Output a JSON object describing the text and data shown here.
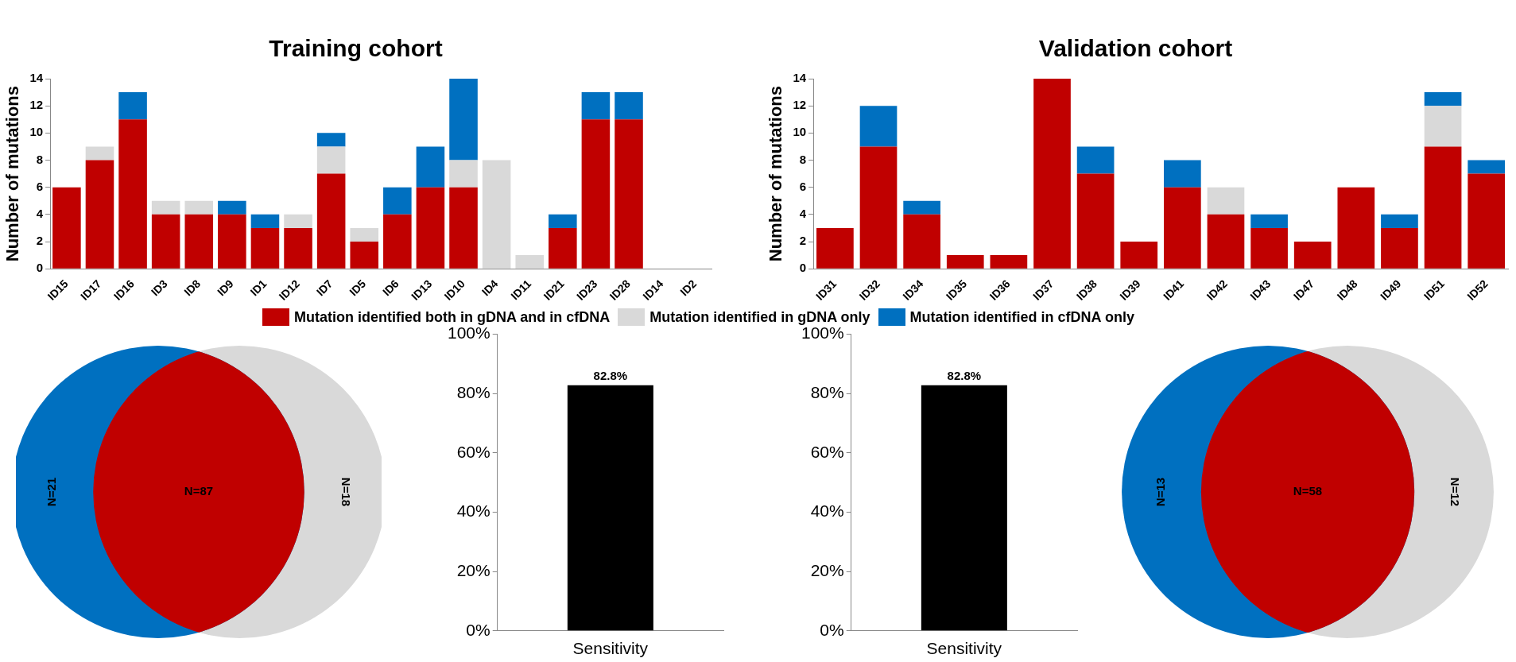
{
  "chart_data": [
    {
      "type": "bar",
      "title": "Training cohort",
      "ylabel": "Number of mutations",
      "stacked": true,
      "legend": "bottom",
      "categories": [
        "ID15",
        "ID17",
        "ID16",
        "ID3",
        "ID8",
        "ID9",
        "ID1",
        "ID12",
        "ID7",
        "ID5",
        "ID6",
        "ID13",
        "ID10",
        "ID4",
        "ID11",
        "ID21",
        "ID23",
        "ID28",
        "ID14",
        "ID2"
      ],
      "ylim": [
        0,
        14
      ],
      "yticks": [
        0,
        2,
        4,
        6,
        8,
        10,
        12,
        14
      ],
      "series": [
        {
          "name": "Mutation identified both in gDNA and in cfDNA",
          "color": "#c00000",
          "values": [
            6,
            8,
            11,
            4,
            4,
            4,
            3,
            3,
            7,
            2,
            4,
            6,
            6,
            0,
            0,
            3,
            11,
            11,
            0,
            0
          ]
        },
        {
          "name": "Mutation identified in gDNA only",
          "color": "#d9d9d9",
          "values": [
            0,
            1,
            0,
            1,
            1,
            0,
            0,
            1,
            2,
            1,
            0,
            0,
            2,
            8,
            1,
            0,
            0,
            0,
            0,
            0
          ]
        },
        {
          "name": "Mutation identified in cfDNA only",
          "color": "#0070c0",
          "values": [
            0,
            0,
            2,
            0,
            0,
            1,
            1,
            0,
            1,
            0,
            2,
            3,
            6,
            0,
            0,
            1,
            2,
            2,
            0,
            0
          ]
        }
      ]
    },
    {
      "type": "bar",
      "title": "Validation cohort",
      "ylabel": "Number of mutations",
      "stacked": true,
      "categories": [
        "ID31",
        "ID32",
        "ID34",
        "ID35",
        "ID36",
        "ID37",
        "ID38",
        "ID39",
        "ID41",
        "ID42",
        "ID43",
        "ID47",
        "ID48",
        "ID49",
        "ID51",
        "ID52"
      ],
      "ylim": [
        0,
        14
      ],
      "yticks": [
        0,
        2,
        4,
        6,
        8,
        10,
        12,
        14
      ],
      "series": [
        {
          "color": "#c00000",
          "values": [
            3,
            9,
            4,
            1,
            1,
            14,
            7,
            2,
            6,
            4,
            3,
            2,
            6,
            3,
            9,
            7
          ]
        },
        {
          "color": "#d9d9d9",
          "values": [
            0,
            0,
            0,
            0,
            0,
            0,
            0,
            0,
            0,
            2,
            0,
            0,
            0,
            0,
            3,
            0
          ]
        },
        {
          "color": "#0070c0",
          "values": [
            0,
            3,
            1,
            0,
            0,
            0,
            2,
            0,
            2,
            0,
            1,
            0,
            0,
            1,
            1,
            1
          ]
        }
      ]
    },
    {
      "type": "other",
      "values": [
        21,
        87,
        18
      ],
      "value_labels": [
        "N=21",
        "N=87",
        "N=18"
      ],
      "colors": [
        "#0070c0",
        "#c00000",
        "#d9d9d9"
      ]
    },
    {
      "type": "bar",
      "categories": [
        "Sensitivity"
      ],
      "values": [
        82.8
      ],
      "value_labels": [
        "82.8%"
      ],
      "color": "#000000",
      "ylim": [
        0,
        100
      ],
      "yticks": [
        {
          "value": 0,
          "label": "0%"
        },
        {
          "value": 20,
          "label": "20%"
        },
        {
          "value": 40,
          "label": "40%"
        },
        {
          "value": 60,
          "label": "60%"
        },
        {
          "value": 80,
          "label": "80%"
        },
        {
          "value": 100,
          "label": "100%"
        }
      ]
    },
    {
      "type": "bar",
      "categories": [
        "Sensitivity"
      ],
      "values": [
        82.8
      ],
      "value_labels": [
        "82.8%"
      ],
      "color": "#000000",
      "ylim": [
        0,
        100
      ],
      "yticks": [
        {
          "value": 0,
          "label": "0%"
        },
        {
          "value": 20,
          "label": "20%"
        },
        {
          "value": 40,
          "label": "40%"
        },
        {
          "value": 60,
          "label": "60%"
        },
        {
          "value": 80,
          "label": "80%"
        },
        {
          "value": 100,
          "label": "100%"
        }
      ]
    },
    {
      "type": "other",
      "values": [
        13,
        58,
        12
      ],
      "value_labels": [
        "N=13",
        "N=58",
        "N=12"
      ],
      "colors": [
        "#0070c0",
        "#c00000",
        "#d9d9d9"
      ]
    }
  ]
}
